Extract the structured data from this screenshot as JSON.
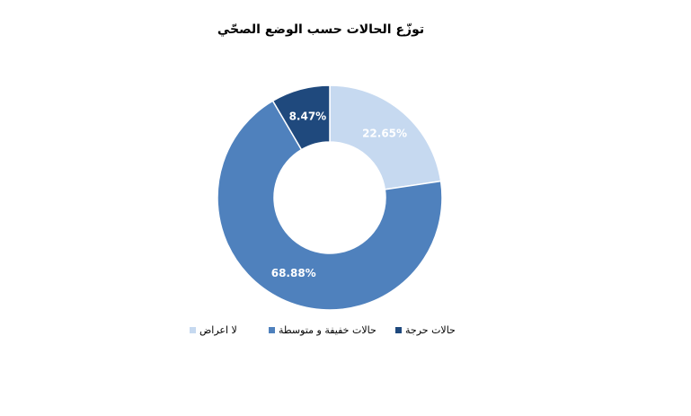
{
  "chart_data": {
    "type": "pie",
    "title": "توزّع الحالات حسب الوضع الصحّي",
    "categories": [
      "لا اعراض",
      "حالات خفيفة و متوسطة",
      "حالات حرجة"
    ],
    "values": [
      22.65,
      68.88,
      8.47
    ],
    "value_labels": [
      "22.65%",
      "68.88%",
      "8.47%"
    ],
    "colors": [
      "#c6d9f0",
      "#4f81bd",
      "#1f497d"
    ],
    "legend": "bottom"
  }
}
